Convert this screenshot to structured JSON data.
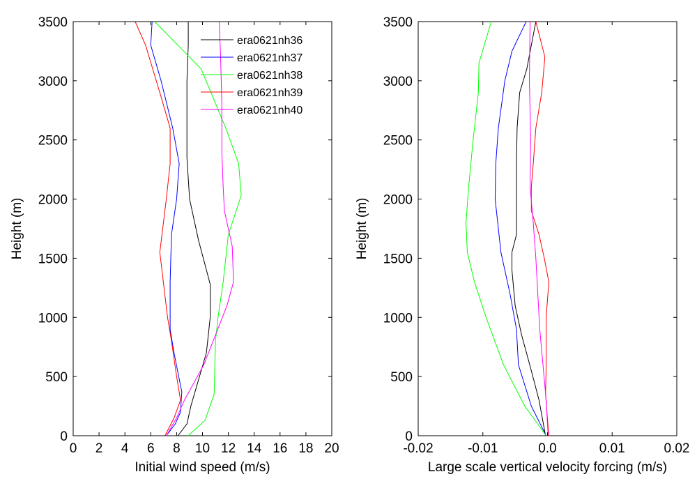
{
  "series_styles": [
    {
      "name": "era0621nh36",
      "color": "#000000"
    },
    {
      "name": "era0621nh37",
      "color": "#0000ff"
    },
    {
      "name": "era0621nh38",
      "color": "#00ff00"
    },
    {
      "name": "era0621nh39",
      "color": "#ff0000"
    },
    {
      "name": "era0621nh40",
      "color": "#ff00ff"
    }
  ],
  "chart_data": [
    {
      "type": "line",
      "xlabel": "Initial wind speed (m/s)",
      "ylabel": "Height (m)",
      "xlim": [
        0,
        20
      ],
      "ylim": [
        0,
        3500
      ],
      "xticks": [
        "0",
        "2",
        "4",
        "6",
        "8",
        "10",
        "12",
        "14",
        "16",
        "18",
        "20"
      ],
      "yticks": [
        "0",
        "500",
        "1000",
        "1500",
        "2000",
        "2500",
        "3000",
        "3500"
      ],
      "legend": "top-right",
      "grid": false,
      "series": [
        {
          "name": "era0621nh36",
          "points": [
            [
              8.1,
              0
            ],
            [
              8.8,
              100
            ],
            [
              9.1,
              250
            ],
            [
              10.3,
              700
            ],
            [
              10.6,
              1000
            ],
            [
              10.6,
              1280
            ],
            [
              9.7,
              1650
            ],
            [
              9.0,
              2000
            ],
            [
              8.8,
              2350
            ],
            [
              8.8,
              2700
            ],
            [
              8.8,
              3000
            ],
            [
              8.9,
              3300
            ],
            [
              8.9,
              3500
            ]
          ]
        },
        {
          "name": "era0621nh37",
          "points": [
            [
              7.2,
              0
            ],
            [
              7.9,
              100
            ],
            [
              8.3,
              200
            ],
            [
              8.4,
              370
            ],
            [
              7.8,
              700
            ],
            [
              7.5,
              900
            ],
            [
              7.5,
              1300
            ],
            [
              7.6,
              1700
            ],
            [
              8.0,
              2000
            ],
            [
              8.2,
              2300
            ],
            [
              7.7,
              2600
            ],
            [
              6.8,
              3000
            ],
            [
              6.0,
              3300
            ],
            [
              6.1,
              3500
            ]
          ]
        },
        {
          "name": "era0621nh38",
          "points": [
            [
              8.9,
              0
            ],
            [
              10.2,
              130
            ],
            [
              10.9,
              350
            ],
            [
              11.0,
              800
            ],
            [
              11.2,
              1000
            ],
            [
              11.6,
              1300
            ],
            [
              12.0,
              1700
            ],
            [
              13.0,
              2030
            ],
            [
              12.8,
              2300
            ],
            [
              11.8,
              2600
            ],
            [
              9.9,
              3100
            ],
            [
              6.3,
              3500
            ]
          ]
        },
        {
          "name": "era0621nh39",
          "points": [
            [
              7.1,
              0
            ],
            [
              7.8,
              150
            ],
            [
              8.3,
              300
            ],
            [
              8.0,
              500
            ],
            [
              7.6,
              800
            ],
            [
              7.3,
              1000
            ],
            [
              6.7,
              1550
            ],
            [
              7.2,
              2000
            ],
            [
              7.5,
              2300
            ],
            [
              7.5,
              2600
            ],
            [
              6.7,
              2900
            ],
            [
              5.6,
              3300
            ],
            [
              4.8,
              3500
            ]
          ]
        },
        {
          "name": "era0621nh40",
          "points": [
            [
              7.2,
              0
            ],
            [
              8.0,
              150
            ],
            [
              8.6,
              300
            ],
            [
              10.1,
              600
            ],
            [
              11.0,
              850
            ],
            [
              11.9,
              1100
            ],
            [
              12.4,
              1300
            ],
            [
              12.3,
              1600
            ],
            [
              11.7,
              1900
            ],
            [
              11.6,
              2100
            ],
            [
              11.5,
              2400
            ],
            [
              11.5,
              2800
            ],
            [
              11.4,
              3200
            ],
            [
              11.3,
              3500
            ]
          ]
        }
      ]
    },
    {
      "type": "line",
      "xlabel": "Large scale vertical velocity forcing (m/s)",
      "ylabel": "Height (m)",
      "xlim": [
        -0.02,
        0.02
      ],
      "ylim": [
        0,
        3500
      ],
      "xticks": [
        "-0.02",
        "-0.01",
        "0.0",
        "0.01",
        "0.02"
      ],
      "yticks": [
        "0",
        "500",
        "1000",
        "1500",
        "2000",
        "2500",
        "3000",
        "3500"
      ],
      "grid": false,
      "series": [
        {
          "name": "era0621nh36",
          "points": [
            [
              -0.0003,
              0
            ],
            [
              -0.0013,
              300
            ],
            [
              -0.0025,
              550
            ],
            [
              -0.004,
              850
            ],
            [
              -0.005,
              1100
            ],
            [
              -0.0055,
              1400
            ],
            [
              -0.0055,
              1550
            ],
            [
              -0.0048,
              1700
            ],
            [
              -0.0048,
              2000
            ],
            [
              -0.0048,
              2300
            ],
            [
              -0.0047,
              2600
            ],
            [
              -0.0043,
              2900
            ],
            [
              -0.0032,
              3100
            ],
            [
              -0.0018,
              3500
            ]
          ]
        },
        {
          "name": "era0621nh37",
          "points": [
            [
              -0.0002,
              0
            ],
            [
              -0.0025,
              250
            ],
            [
              -0.0045,
              600
            ],
            [
              -0.0048,
              900
            ],
            [
              -0.0058,
              1200
            ],
            [
              -0.0072,
              1550
            ],
            [
              -0.0081,
              2000
            ],
            [
              -0.008,
              2300
            ],
            [
              -0.0076,
              2600
            ],
            [
              -0.0066,
              3000
            ],
            [
              -0.0055,
              3250
            ],
            [
              -0.0033,
              3500
            ]
          ]
        },
        {
          "name": "era0621nh38",
          "points": [
            [
              -0.0002,
              0
            ],
            [
              -0.0035,
              250
            ],
            [
              -0.0068,
              600
            ],
            [
              -0.0095,
              1000
            ],
            [
              -0.0113,
              1300
            ],
            [
              -0.0124,
              1550
            ],
            [
              -0.0126,
              1800
            ],
            [
              -0.0122,
              2100
            ],
            [
              -0.0115,
              2500
            ],
            [
              -0.0107,
              2900
            ],
            [
              -0.0106,
              3150
            ],
            [
              -0.0087,
              3500
            ]
          ]
        },
        {
          "name": "era0621nh39",
          "points": [
            [
              0.0002,
              0
            ],
            [
              -0.0003,
              350
            ],
            [
              -0.0002,
              600
            ],
            [
              -0.0002,
              1000
            ],
            [
              0.0002,
              1300
            ],
            [
              -0.0005,
              1500
            ],
            [
              -0.0013,
              1700
            ],
            [
              -0.0025,
              1900
            ],
            [
              -0.0025,
              2100
            ],
            [
              -0.0022,
              2300
            ],
            [
              -0.0018,
              2600
            ],
            [
              -0.0009,
              2900
            ],
            [
              -0.0004,
              3200
            ],
            [
              -0.0018,
              3500
            ]
          ]
        },
        {
          "name": "era0621nh40",
          "points": [
            [
              0.0001,
              0
            ],
            [
              -0.0002,
              300
            ],
            [
              -0.0007,
              600
            ],
            [
              -0.0012,
              900
            ],
            [
              -0.0015,
              1200
            ],
            [
              -0.0018,
              1500
            ],
            [
              -0.0022,
              1800
            ],
            [
              -0.0027,
              2100
            ],
            [
              -0.0026,
              2500
            ],
            [
              -0.0028,
              3000
            ],
            [
              -0.0027,
              3500
            ]
          ]
        }
      ]
    }
  ]
}
